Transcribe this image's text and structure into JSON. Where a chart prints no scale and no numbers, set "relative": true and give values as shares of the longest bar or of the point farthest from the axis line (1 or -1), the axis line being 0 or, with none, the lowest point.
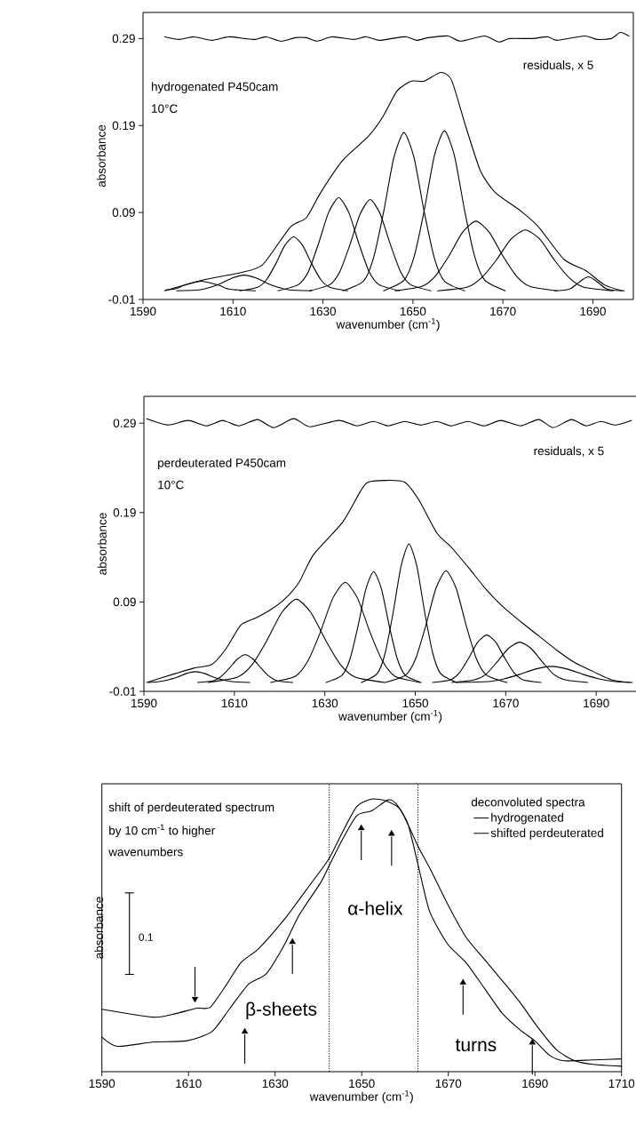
{
  "chart_data": [
    {
      "type": "line",
      "xlabel": "wavenumber (cm$^{-1}$)",
      "ylabel": "absorbance",
      "xlim": [
        1590,
        1699
      ],
      "xticks": [
        1590,
        1610,
        1630,
        1650,
        1670,
        1690
      ],
      "ylim": [
        -0.01,
        0.32
      ],
      "yticks": [
        -0.01,
        0.09,
        0.19,
        0.29
      ],
      "annotations": [
        "hydrogenated P450cam",
        "10°C",
        "residuals, x 5"
      ],
      "series": [
        {
          "color": "#000000",
          "x": [
            1594.8,
            1598.1,
            1601.3,
            1605.3,
            1609.0,
            1612.6,
            1615.0,
            1617.4,
            1620.7,
            1623.9,
            1626.3,
            1628.7,
            1632.0,
            1636.8,
            1639.6,
            1642.5,
            1645.3,
            1648.5,
            1650.9,
            1653.4,
            1657.8,
            1660.6,
            1665.9,
            1669.1,
            1671.5,
            1676.4,
            1680.0,
            1682.0,
            1688.1,
            1690.9,
            1694.1,
            1696.1,
            1698.0
          ],
          "values": [
            0.292,
            0.289,
            0.292,
            0.288,
            0.292,
            0.29,
            0.289,
            0.292,
            0.287,
            0.291,
            0.291,
            0.287,
            0.292,
            0.289,
            0.292,
            0.288,
            0.29,
            0.292,
            0.288,
            0.291,
            0.293,
            0.287,
            0.293,
            0.286,
            0.29,
            0.29,
            0.292,
            0.288,
            0.293,
            0.289,
            0.29,
            0.297,
            0.293
          ]
        },
        {
          "color": "#000000",
          "x": [
            1594.8,
            1603,
            1611.8,
            1616.6,
            1622.7,
            1626.3,
            1629.5,
            1634.4,
            1640,
            1643.3,
            1646.5,
            1649.7,
            1652.5,
            1656.2,
            1658.6,
            1661.8,
            1665,
            1668.3,
            1673.9,
            1678,
            1683.6,
            1688.5,
            1692.5,
            1696.5
          ],
          "values": [
            0,
            0.012,
            0.021,
            0.03,
            0.073,
            0.084,
            0.113,
            0.15,
            0.177,
            0.2,
            0.23,
            0.241,
            0.241,
            0.251,
            0.242,
            0.188,
            0.138,
            0.113,
            0.092,
            0.073,
            0.036,
            0.023,
            0.007,
            0
          ]
        },
        {
          "color": "#000000",
          "x": [
            1595,
            1597,
            1599,
            1601,
            1603,
            1605,
            1607,
            1609,
            1611,
            1615
          ],
          "values": [
            0.001,
            0.002,
            0.006,
            0.009,
            0.011,
            0.009,
            0.006,
            0.002,
            0.001,
            0
          ]
        },
        {
          "color": "#000000",
          "x": [
            1597.5,
            1602.5,
            1605,
            1607.5,
            1610,
            1612.5,
            1615,
            1617.5,
            1620,
            1622.5,
            1627.5
          ],
          "values": [
            0,
            0.001,
            0.004,
            0.009,
            0.015,
            0.018,
            0.015,
            0.009,
            0.004,
            0.001,
            0
          ]
        },
        {
          "color": "#000000",
          "x": [
            1611.5,
            1615.5,
            1617.5,
            1619.5,
            1621.5,
            1623.5,
            1625.5,
            1627.5,
            1629.5,
            1631.5,
            1635.5
          ],
          "values": [
            0,
            0.004,
            0.013,
            0.031,
            0.052,
            0.062,
            0.052,
            0.031,
            0.013,
            0.004,
            0
          ]
        },
        {
          "color": "#000000",
          "x": [
            1620,
            1624.5,
            1626.75,
            1629,
            1631.25,
            1633.5,
            1635.75,
            1638,
            1640.25,
            1642.5,
            1647
          ],
          "values": [
            0,
            0.007,
            0.022,
            0.054,
            0.09,
            0.107,
            0.09,
            0.054,
            0.022,
            0.007,
            0
          ]
        },
        {
          "color": "#000000",
          "x": [
            1627,
            1631.5,
            1633.75,
            1636,
            1638.25,
            1640.5,
            1642.75,
            1645,
            1647.25,
            1649.5,
            1654
          ],
          "values": [
            0,
            0.007,
            0.022,
            0.053,
            0.088,
            0.105,
            0.088,
            0.053,
            0.022,
            0.007,
            0
          ]
        },
        {
          "color": "#000000",
          "x": [
            1634.5,
            1639,
            1641.25,
            1643.5,
            1645.75,
            1648,
            1650.25,
            1652.5,
            1654.75,
            1657,
            1661.5
          ],
          "values": [
            0,
            0.011,
            0.038,
            0.091,
            0.153,
            0.182,
            0.153,
            0.091,
            0.038,
            0.011,
            0
          ]
        },
        {
          "color": "#000000",
          "x": [
            1643.5,
            1648,
            1650.25,
            1652.5,
            1654.75,
            1657,
            1659.25,
            1661.5,
            1663.75,
            1666,
            1670.5
          ],
          "values": [
            0,
            0.012,
            0.039,
            0.092,
            0.155,
            0.184,
            0.155,
            0.092,
            0.039,
            0.012,
            0
          ]
        },
        {
          "color": "#000000",
          "x": [
            1646,
            1652,
            1655,
            1658,
            1661,
            1664,
            1667,
            1670,
            1673,
            1676,
            1682
          ],
          "values": [
            0,
            0.005,
            0.017,
            0.04,
            0.067,
            0.08,
            0.067,
            0.04,
            0.017,
            0.005,
            0
          ]
        },
        {
          "color": "#000000",
          "x": [
            1655.5,
            1662,
            1665.25,
            1668.5,
            1671.75,
            1675,
            1678.25,
            1681.5,
            1684.75,
            1688,
            1694.5
          ],
          "values": [
            0,
            0.004,
            0.015,
            0.035,
            0.059,
            0.07,
            0.059,
            0.035,
            0.015,
            0.004,
            0
          ]
        },
        {
          "color": "#000000",
          "x": [
            1681.5,
            1684,
            1685.25,
            1686.5,
            1687.75,
            1689,
            1690.25,
            1691.5,
            1692.75,
            1694,
            1697
          ],
          "values": [
            0,
            0.001,
            0.003,
            0.008,
            0.013,
            0.016,
            0.013,
            0.008,
            0.003,
            0.001,
            0
          ]
        }
      ]
    },
    {
      "type": "line",
      "xlabel": "wavenumber (cm$^{-1}$)",
      "ylabel": "absorbance",
      "xlim": [
        1590,
        1699
      ],
      "xticks": [
        1590,
        1610,
        1630,
        1650,
        1670,
        1690
      ],
      "ylim": [
        -0.01,
        0.32
      ],
      "yticks": [
        -0.01,
        0.09,
        0.19,
        0.29
      ],
      "annotations": [
        "perdeuterated P450cam",
        "10°C",
        "residuals, x 5"
      ],
      "series": [
        {
          "color": "#000000",
          "x": [
            1590.6,
            1595.4,
            1599.8,
            1603.8,
            1607.4,
            1611.0,
            1615.1,
            1618.7,
            1623.1,
            1626.7,
            1633.1,
            1637.1,
            1640.8,
            1644.0,
            1647.6,
            1651.2,
            1654.8,
            1658.0,
            1661.6,
            1665.3,
            1668.9,
            1673.3,
            1677.3,
            1680.5,
            1684.5,
            1687.8,
            1691.0,
            1694.2,
            1697.8
          ],
          "values": [
            0.295,
            0.288,
            0.293,
            0.287,
            0.293,
            0.287,
            0.294,
            0.285,
            0.295,
            0.286,
            0.293,
            0.287,
            0.292,
            0.287,
            0.292,
            0.288,
            0.292,
            0.287,
            0.292,
            0.287,
            0.293,
            0.287,
            0.294,
            0.285,
            0.294,
            0.287,
            0.292,
            0.288,
            0.293
          ]
        },
        {
          "color": "#000000",
          "x": [
            1590.6,
            1597,
            1601,
            1605,
            1608.2,
            1611.4,
            1614.7,
            1617.9,
            1621.1,
            1624.3,
            1627.5,
            1633.9,
            1637.9,
            1639.6,
            1643.6,
            1647.6,
            1650.8,
            1654.8,
            1658,
            1662,
            1665.5,
            1669.3,
            1673.3,
            1677.3,
            1681.3,
            1685.3,
            1689.4,
            1693.4,
            1697.4
          ],
          "values": [
            0,
            0.01,
            0.016,
            0.02,
            0.038,
            0.064,
            0.072,
            0.081,
            0.093,
            0.112,
            0.143,
            0.179,
            0.214,
            0.224,
            0.226,
            0.224,
            0.204,
            0.167,
            0.151,
            0.127,
            0.105,
            0.085,
            0.068,
            0.052,
            0.036,
            0.022,
            0.012,
            0.003,
            0
          ]
        },
        {
          "color": "#000000",
          "x": [
            1591,
            1593.4,
            1595.4,
            1597.4,
            1599.4,
            1601.4,
            1603.4,
            1605.4,
            1607.4,
            1609.4,
            1613.4
          ],
          "values": [
            0,
            0.001,
            0.003,
            0.006,
            0.01,
            0.012,
            0.01,
            0.006,
            0.003,
            0.001,
            0
          ]
        },
        {
          "color": "#000000",
          "x": [
            1601.9,
            1605.4,
            1607.15,
            1608.9,
            1610.65,
            1612.4,
            1614.15,
            1615.9,
            1617.65,
            1619.4,
            1622.9
          ],
          "values": [
            0,
            0.002,
            0.007,
            0.016,
            0.026,
            0.031,
            0.026,
            0.016,
            0.007,
            0.002,
            0
          ]
        },
        {
          "color": "#000000",
          "x": [
            1604.2,
            1610.7,
            1613.95,
            1617.2,
            1620.45,
            1623.7,
            1626.95,
            1630.2,
            1633.45,
            1636.7,
            1643.2
          ],
          "values": [
            0,
            0.006,
            0.02,
            0.047,
            0.078,
            0.093,
            0.078,
            0.047,
            0.02,
            0.006,
            0
          ]
        },
        {
          "color": "#000000",
          "x": [
            1618,
            1623.5,
            1626.25,
            1629,
            1631.75,
            1634.5,
            1637.25,
            1640,
            1642.75,
            1645.5,
            1651
          ],
          "values": [
            0,
            0.007,
            0.024,
            0.056,
            0.094,
            0.112,
            0.094,
            0.056,
            0.024,
            0.007,
            0
          ]
        },
        {
          "color": "#000000",
          "x": [
            1630.3,
            1633.8,
            1635.55,
            1637.3,
            1639.05,
            1640.8,
            1642.55,
            1644.3,
            1646.05,
            1647.8,
            1651.3
          ],
          "values": [
            0,
            0.008,
            0.026,
            0.062,
            0.104,
            0.124,
            0.104,
            0.062,
            0.026,
            0.008,
            0
          ]
        },
        {
          "color": "#000000",
          "x": [
            1638.1,
            1641.6,
            1643.35,
            1645.1,
            1646.85,
            1648.6,
            1650.35,
            1652.1,
            1653.85,
            1655.6,
            1659.1
          ],
          "values": [
            0,
            0.01,
            0.033,
            0.078,
            0.13,
            0.155,
            0.13,
            0.078,
            0.033,
            0.01,
            0
          ]
        },
        {
          "color": "#000000",
          "x": [
            1643.3,
            1647.8,
            1650.05,
            1652.3,
            1654.55,
            1656.8,
            1659.05,
            1661.3,
            1663.55,
            1665.8,
            1670.3
          ],
          "values": [
            0,
            0.008,
            0.026,
            0.063,
            0.105,
            0.125,
            0.105,
            0.063,
            0.026,
            0.008,
            0
          ]
        },
        {
          "color": "#000000",
          "x": [
            1653.8,
            1657.8,
            1659.8,
            1661.8,
            1663.8,
            1665.8,
            1667.8,
            1669.8,
            1671.8,
            1673.8,
            1677.8
          ],
          "values": [
            0,
            0.003,
            0.011,
            0.027,
            0.045,
            0.053,
            0.045,
            0.027,
            0.011,
            0.003,
            0
          ]
        },
        {
          "color": "#000000",
          "x": [
            1658.1,
            1663.1,
            1665.6,
            1668.1,
            1670.6,
            1673.1,
            1675.6,
            1678.1,
            1680.6,
            1683.1,
            1688.1
          ],
          "values": [
            0,
            0.003,
            0.009,
            0.023,
            0.038,
            0.045,
            0.038,
            0.023,
            0.009,
            0.003,
            0
          ]
        },
        {
          "color": "#000000",
          "x": [
            1659.1,
            1666.1,
            1669.6,
            1673.1,
            1676.6,
            1680.1,
            1683.6,
            1687.1,
            1690.6,
            1694.1,
            1698
          ],
          "values": [
            0,
            0.001,
            0.004,
            0.009,
            0.015,
            0.018,
            0.015,
            0.009,
            0.004,
            0.001,
            0
          ]
        }
      ]
    },
    {
      "type": "line",
      "relative": true,
      "xlabel": "wavenumber (cm$^{-1}$)",
      "ylabel": "absorbance",
      "xlim": [
        1590,
        1710
      ],
      "xticks": [
        1590,
        1610,
        1630,
        1650,
        1670,
        1690,
        1710
      ],
      "legend": "top right",
      "legend_title": "deconvoluted spectra",
      "annotations": [
        "shift of perdeuterated spectrum",
        "by 10 cm$^{-1}$ to higher",
        "wavenumbers",
        "0.1",
        "α-helix",
        "β-sheets",
        "turns"
      ],
      "ref_lines": [
        {
          "axis": "x",
          "value": 1642.5,
          "line_style": "dotted"
        },
        {
          "axis": "x",
          "value": 1663,
          "line_style": "dotted"
        }
      ],
      "series": [
        {
          "name": "hydrogenated",
          "color": "#000000",
          "x": [
            1590,
            1593.6,
            1602,
            1609.5,
            1615.4,
            1619.6,
            1623.8,
            1628,
            1632.2,
            1635.5,
            1640.5,
            1642.4,
            1645.6,
            1648.9,
            1652.3,
            1656.1,
            1658.1,
            1660.7,
            1663,
            1665.7,
            1669.9,
            1674.1,
            1678.3,
            1682.5,
            1686.6,
            1690,
            1693.4,
            1696.7,
            1703.4,
            1710
          ],
          "values": [
            0.127,
            0.093,
            0.109,
            0.113,
            0.147,
            0.233,
            0.32,
            0.36,
            0.467,
            0.573,
            0.693,
            0.753,
            0.853,
            0.94,
            0.957,
            0.997,
            0.98,
            0.907,
            0.76,
            0.587,
            0.467,
            0.4,
            0.307,
            0.213,
            0.153,
            0.113,
            0.06,
            0.04,
            0.043,
            0.047
          ]
        },
        {
          "name": "shifted perdeuterated",
          "color": "#000000",
          "x": [
            1590,
            1602,
            1607,
            1612,
            1615,
            1618.8,
            1622.1,
            1626.3,
            1632.2,
            1637.2,
            1642.4,
            1645.6,
            1648.9,
            1652.3,
            1655.6,
            1659,
            1663,
            1665.7,
            1669.9,
            1674.1,
            1678.3,
            1682.5,
            1686.6,
            1690.8,
            1695,
            1699.2,
            1703.4,
            1710
          ],
          "values": [
            0.229,
            0.2,
            0.213,
            0.233,
            0.236,
            0.32,
            0.4,
            0.453,
            0.56,
            0.667,
            0.78,
            0.88,
            0.973,
            1.0,
            0.993,
            0.96,
            0.827,
            0.747,
            0.613,
            0.493,
            0.413,
            0.333,
            0.253,
            0.16,
            0.08,
            0.04,
            0.027,
            0.02
          ]
        },
        {
          "type": "scatter",
          "marker": "triangle",
          "color": "#000000",
          "x": [
            1611.5,
            1623,
            1634,
            1649.9,
            1656.9,
            1673.4,
            1689.4
          ],
          "values": [
            0.267,
            0.147,
            0.476,
            0.893,
            0.873,
            0.327,
            0.107
          ]
        }
      ]
    }
  ]
}
